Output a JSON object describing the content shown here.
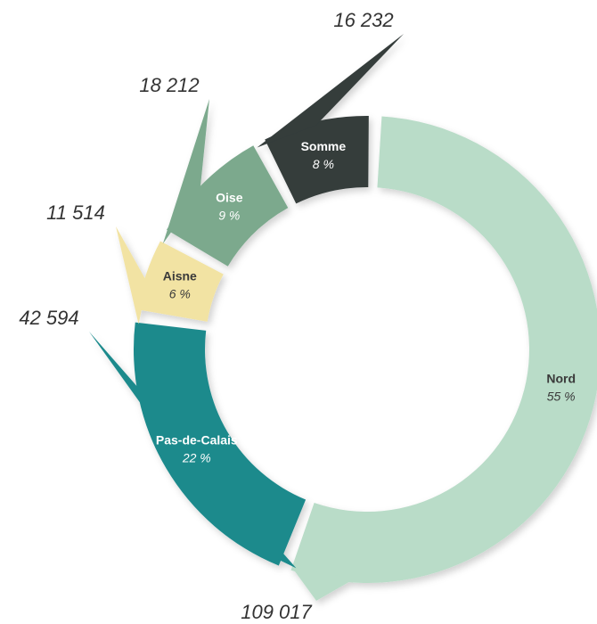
{
  "chart_data": {
    "type": "donut",
    "categories": [
      "Nord",
      "Pas-de-Calais",
      "Aisne",
      "Oise",
      "Somme"
    ],
    "values": [
      109017,
      42594,
      11514,
      18212,
      16232
    ],
    "value_labels": [
      "109 017",
      "42 594",
      "11 514",
      "18 212",
      "16 232"
    ],
    "percents": [
      55,
      22,
      6,
      9,
      8
    ],
    "percent_labels": [
      "55 %",
      "22 %",
      "6 %",
      "9 %",
      "8 %"
    ],
    "colors": [
      "#b9dcc8",
      "#1b8a8c",
      "#f2e3a3",
      "#7ba98d",
      "#343c3b"
    ]
  }
}
